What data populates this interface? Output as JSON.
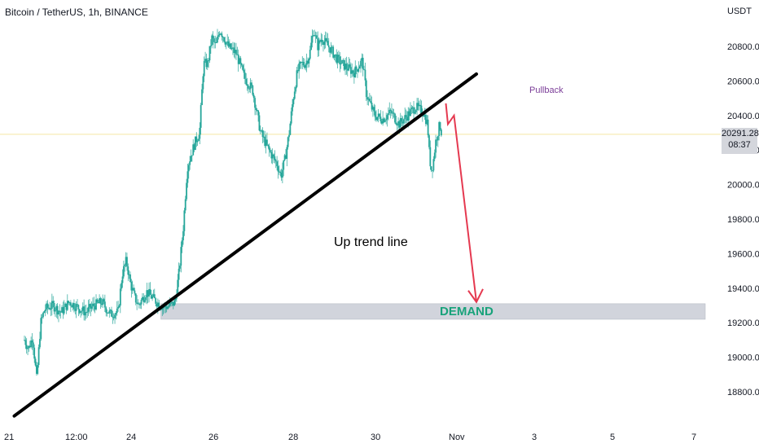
{
  "chart_title": "Bitcoin / TetherUS, 1h, BINANCE",
  "currency": "USDT",
  "current_price_tag": {
    "price": "20291.28",
    "timer": "08:37"
  },
  "annotations": {
    "trend_line": "Up trend line",
    "demand_zone": "DEMAND",
    "pullback": "Pullback"
  },
  "colors": {
    "candle_up": "#26a69a",
    "candle_down": "#26a69a",
    "trend_line": "#000000",
    "demand_zone": "#d1d4dc",
    "demand_text": "#18a27a",
    "projection_arrow": "#e53950",
    "pullback_text": "#7b3d98",
    "current_price_line": "#f5e6a3"
  },
  "chart_data": {
    "type": "candlestick",
    "title": "Bitcoin / TetherUS, 1h, BINANCE",
    "y_axis": {
      "unit": "USDT",
      "ticks": [
        18800,
        19000,
        19200,
        19400,
        19600,
        19800,
        20000,
        20200,
        20400,
        20600,
        20800
      ],
      "tick_labels": [
        "18800.00",
        "19000.00",
        "19200.00",
        "19400.00",
        "19600.00",
        "19800.00",
        "20000.00",
        "20200.00",
        "20400.00",
        "20600.00",
        "20800.00"
      ],
      "range": [
        18600,
        21050
      ]
    },
    "x_axis": {
      "tick_labels": [
        "21",
        "12:00",
        "24",
        "26",
        "28",
        "30",
        "Nov",
        "3",
        "5",
        "7"
      ],
      "range_days": [
        21.0,
        31.0
      ]
    },
    "price_path": [
      [
        21.0,
        19100
      ],
      [
        21.1,
        19050
      ],
      [
        21.2,
        19120
      ],
      [
        21.3,
        18870
      ],
      [
        21.4,
        19200
      ],
      [
        21.5,
        19280
      ],
      [
        21.7,
        19300
      ],
      [
        21.9,
        19260
      ],
      [
        22.1,
        19320
      ],
      [
        22.3,
        19290
      ],
      [
        22.5,
        19260
      ],
      [
        22.7,
        19300
      ],
      [
        22.9,
        19320
      ],
      [
        23.1,
        19250
      ],
      [
        23.3,
        19260
      ],
      [
        23.4,
        19480
      ],
      [
        23.5,
        19560
      ],
      [
        23.6,
        19430
      ],
      [
        23.7,
        19350
      ],
      [
        23.8,
        19300
      ],
      [
        24.0,
        19380
      ],
      [
        24.2,
        19330
      ],
      [
        24.4,
        19290
      ],
      [
        24.6,
        19300
      ],
      [
        24.7,
        19320
      ],
      [
        24.8,
        19500
      ],
      [
        24.9,
        19750
      ],
      [
        25.0,
        20100
      ],
      [
        25.1,
        20180
      ],
      [
        25.2,
        20250
      ],
      [
        25.3,
        20300
      ],
      [
        25.4,
        20700
      ],
      [
        25.5,
        20700
      ],
      [
        25.6,
        20850
      ],
      [
        25.7,
        20800
      ],
      [
        25.8,
        20900
      ],
      [
        26.0,
        20800
      ],
      [
        26.2,
        20760
      ],
      [
        26.4,
        20620
      ],
      [
        26.6,
        20550
      ],
      [
        26.8,
        20300
      ],
      [
        27.0,
        20200
      ],
      [
        27.2,
        20120
      ],
      [
        27.3,
        20050
      ],
      [
        27.4,
        20150
      ],
      [
        27.5,
        20300
      ],
      [
        27.6,
        20500
      ],
      [
        27.7,
        20650
      ],
      [
        27.8,
        20700
      ],
      [
        27.9,
        20700
      ],
      [
        28.0,
        20750
      ],
      [
        28.1,
        20900
      ],
      [
        28.2,
        20800
      ],
      [
        28.3,
        20850
      ],
      [
        28.5,
        20790
      ],
      [
        28.7,
        20720
      ],
      [
        28.9,
        20680
      ],
      [
        29.1,
        20650
      ],
      [
        29.3,
        20720
      ],
      [
        29.4,
        20520
      ],
      [
        29.6,
        20400
      ],
      [
        29.8,
        20380
      ],
      [
        30.0,
        20420
      ],
      [
        30.2,
        20350
      ],
      [
        30.4,
        20400
      ],
      [
        30.6,
        20450
      ],
      [
        30.8,
        20420
      ],
      [
        30.9,
        20350
      ],
      [
        30.95,
        20150
      ],
      [
        31.0,
        20080
      ],
      [
        31.05,
        20150
      ],
      [
        31.1,
        20250
      ],
      [
        31.2,
        20350
      ],
      [
        31.25,
        20291
      ]
    ],
    "trend_line": {
      "from": [
        20.75,
        18660
      ],
      "to": [
        32.1,
        20640
      ]
    },
    "demand_zone": {
      "y_range": [
        19220,
        19310
      ],
      "x_from": 24.35
    },
    "current_price": 20291.28,
    "projection": [
      [
        31.35,
        20470
      ],
      [
        31.4,
        20350
      ],
      [
        31.55,
        20400
      ],
      [
        32.1,
        19320
      ]
    ],
    "labels": {
      "trend_line": "Up trend line",
      "demand": "DEMAND",
      "pullback": "Pullback"
    }
  }
}
